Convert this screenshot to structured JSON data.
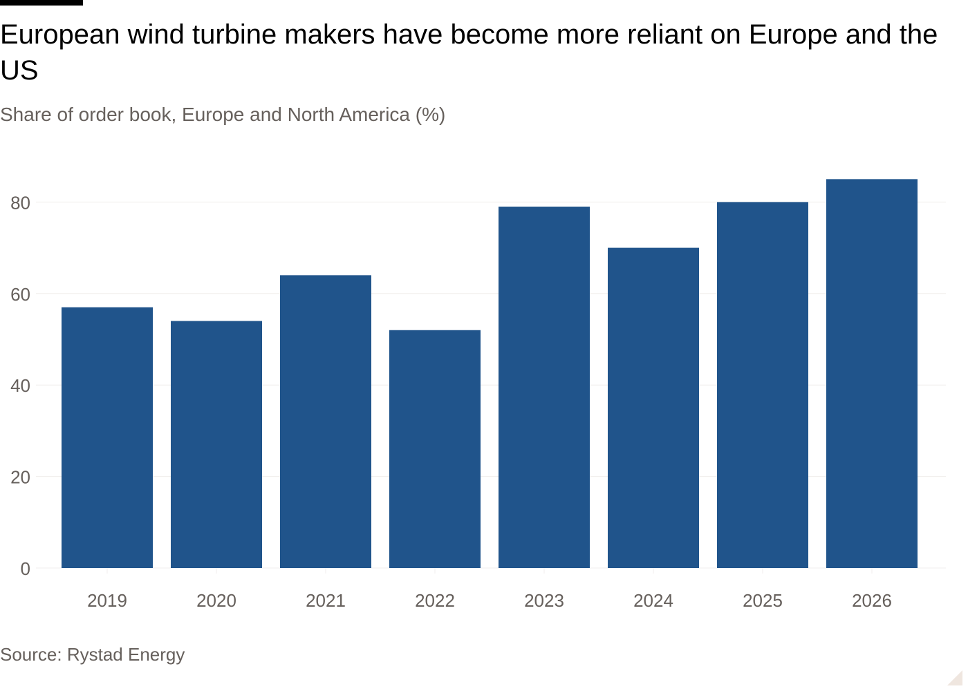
{
  "header": {
    "title": "European wind turbine makers have become more reliant on Europe and the US",
    "subtitle": "Share of order book, Europe and North America (%)"
  },
  "footer": {
    "source": "Source: Rystad Energy"
  },
  "colors": {
    "bar": "#20548b",
    "grid": "#f0eeec",
    "axis_text": "#66605c",
    "title": "#000000"
  },
  "chart_data": {
    "type": "bar",
    "title": "European wind turbine makers have become more reliant on Europe and the US",
    "subtitle": "Share of order book, Europe and North America (%)",
    "xlabel": "",
    "ylabel": "",
    "categories": [
      "2019",
      "2020",
      "2021",
      "2022",
      "2023",
      "2024",
      "2025",
      "2026"
    ],
    "values": [
      57,
      54,
      64,
      52,
      79,
      70,
      80,
      85
    ],
    "ylim": [
      0,
      85
    ],
    "yticks": [
      0,
      20,
      40,
      60,
      80
    ],
    "grid": true,
    "legend": "none"
  }
}
